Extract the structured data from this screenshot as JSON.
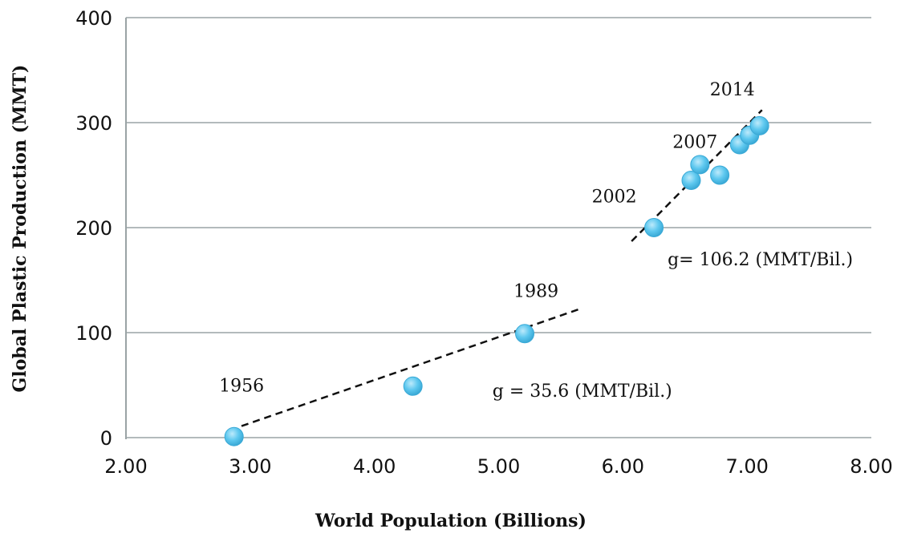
{
  "chart_data": {
    "type": "scatter",
    "xlabel": "World Population (Billions)",
    "ylabel": "Global Plastic Production (MMT)",
    "xlim": [
      2.0,
      8.0
    ],
    "ylim": [
      0,
      400
    ],
    "x_ticks": [
      "2.00",
      "3.00",
      "4.00",
      "5.00",
      "6.00",
      "7.00",
      "8.00"
    ],
    "y_ticks": [
      "0",
      "100",
      "200",
      "300",
      "400"
    ],
    "grid": "horizontal",
    "marker_color": "#5ec8ef",
    "marker_edge_color": "#3aa9d6",
    "points": [
      {
        "x": 2.87,
        "y": 1
      },
      {
        "x": 4.31,
        "y": 49
      },
      {
        "x": 5.21,
        "y": 99
      },
      {
        "x": 6.25,
        "y": 200
      },
      {
        "x": 6.55,
        "y": 245
      },
      {
        "x": 6.62,
        "y": 260
      },
      {
        "x": 6.78,
        "y": 250
      },
      {
        "x": 6.94,
        "y": 279
      },
      {
        "x": 7.02,
        "y": 288
      },
      {
        "x": 7.1,
        "y": 297
      }
    ],
    "trendlines": [
      {
        "x": [
          2.93,
          5.64
        ],
        "y": [
          11,
          122
        ],
        "label": "g = 35.6 (MMT/Bil.)"
      },
      {
        "x": [
          6.07,
          7.12
        ],
        "y": [
          187,
          312
        ],
        "label": "g= 106.2 (MMT/Bil.)"
      }
    ],
    "year_labels": [
      {
        "text": "1956",
        "x": 2.75,
        "y": 44
      },
      {
        "text": "1989",
        "x": 5.12,
        "y": 134
      },
      {
        "text": "2002",
        "x": 5.75,
        "y": 224
      },
      {
        "text": "2007",
        "x": 6.4,
        "y": 276
      },
      {
        "text": "2014",
        "x": 6.7,
        "y": 326
      }
    ],
    "trend_label_positions": [
      {
        "x": 4.95,
        "y": 39
      },
      {
        "x": 6.36,
        "y": 164
      }
    ]
  }
}
